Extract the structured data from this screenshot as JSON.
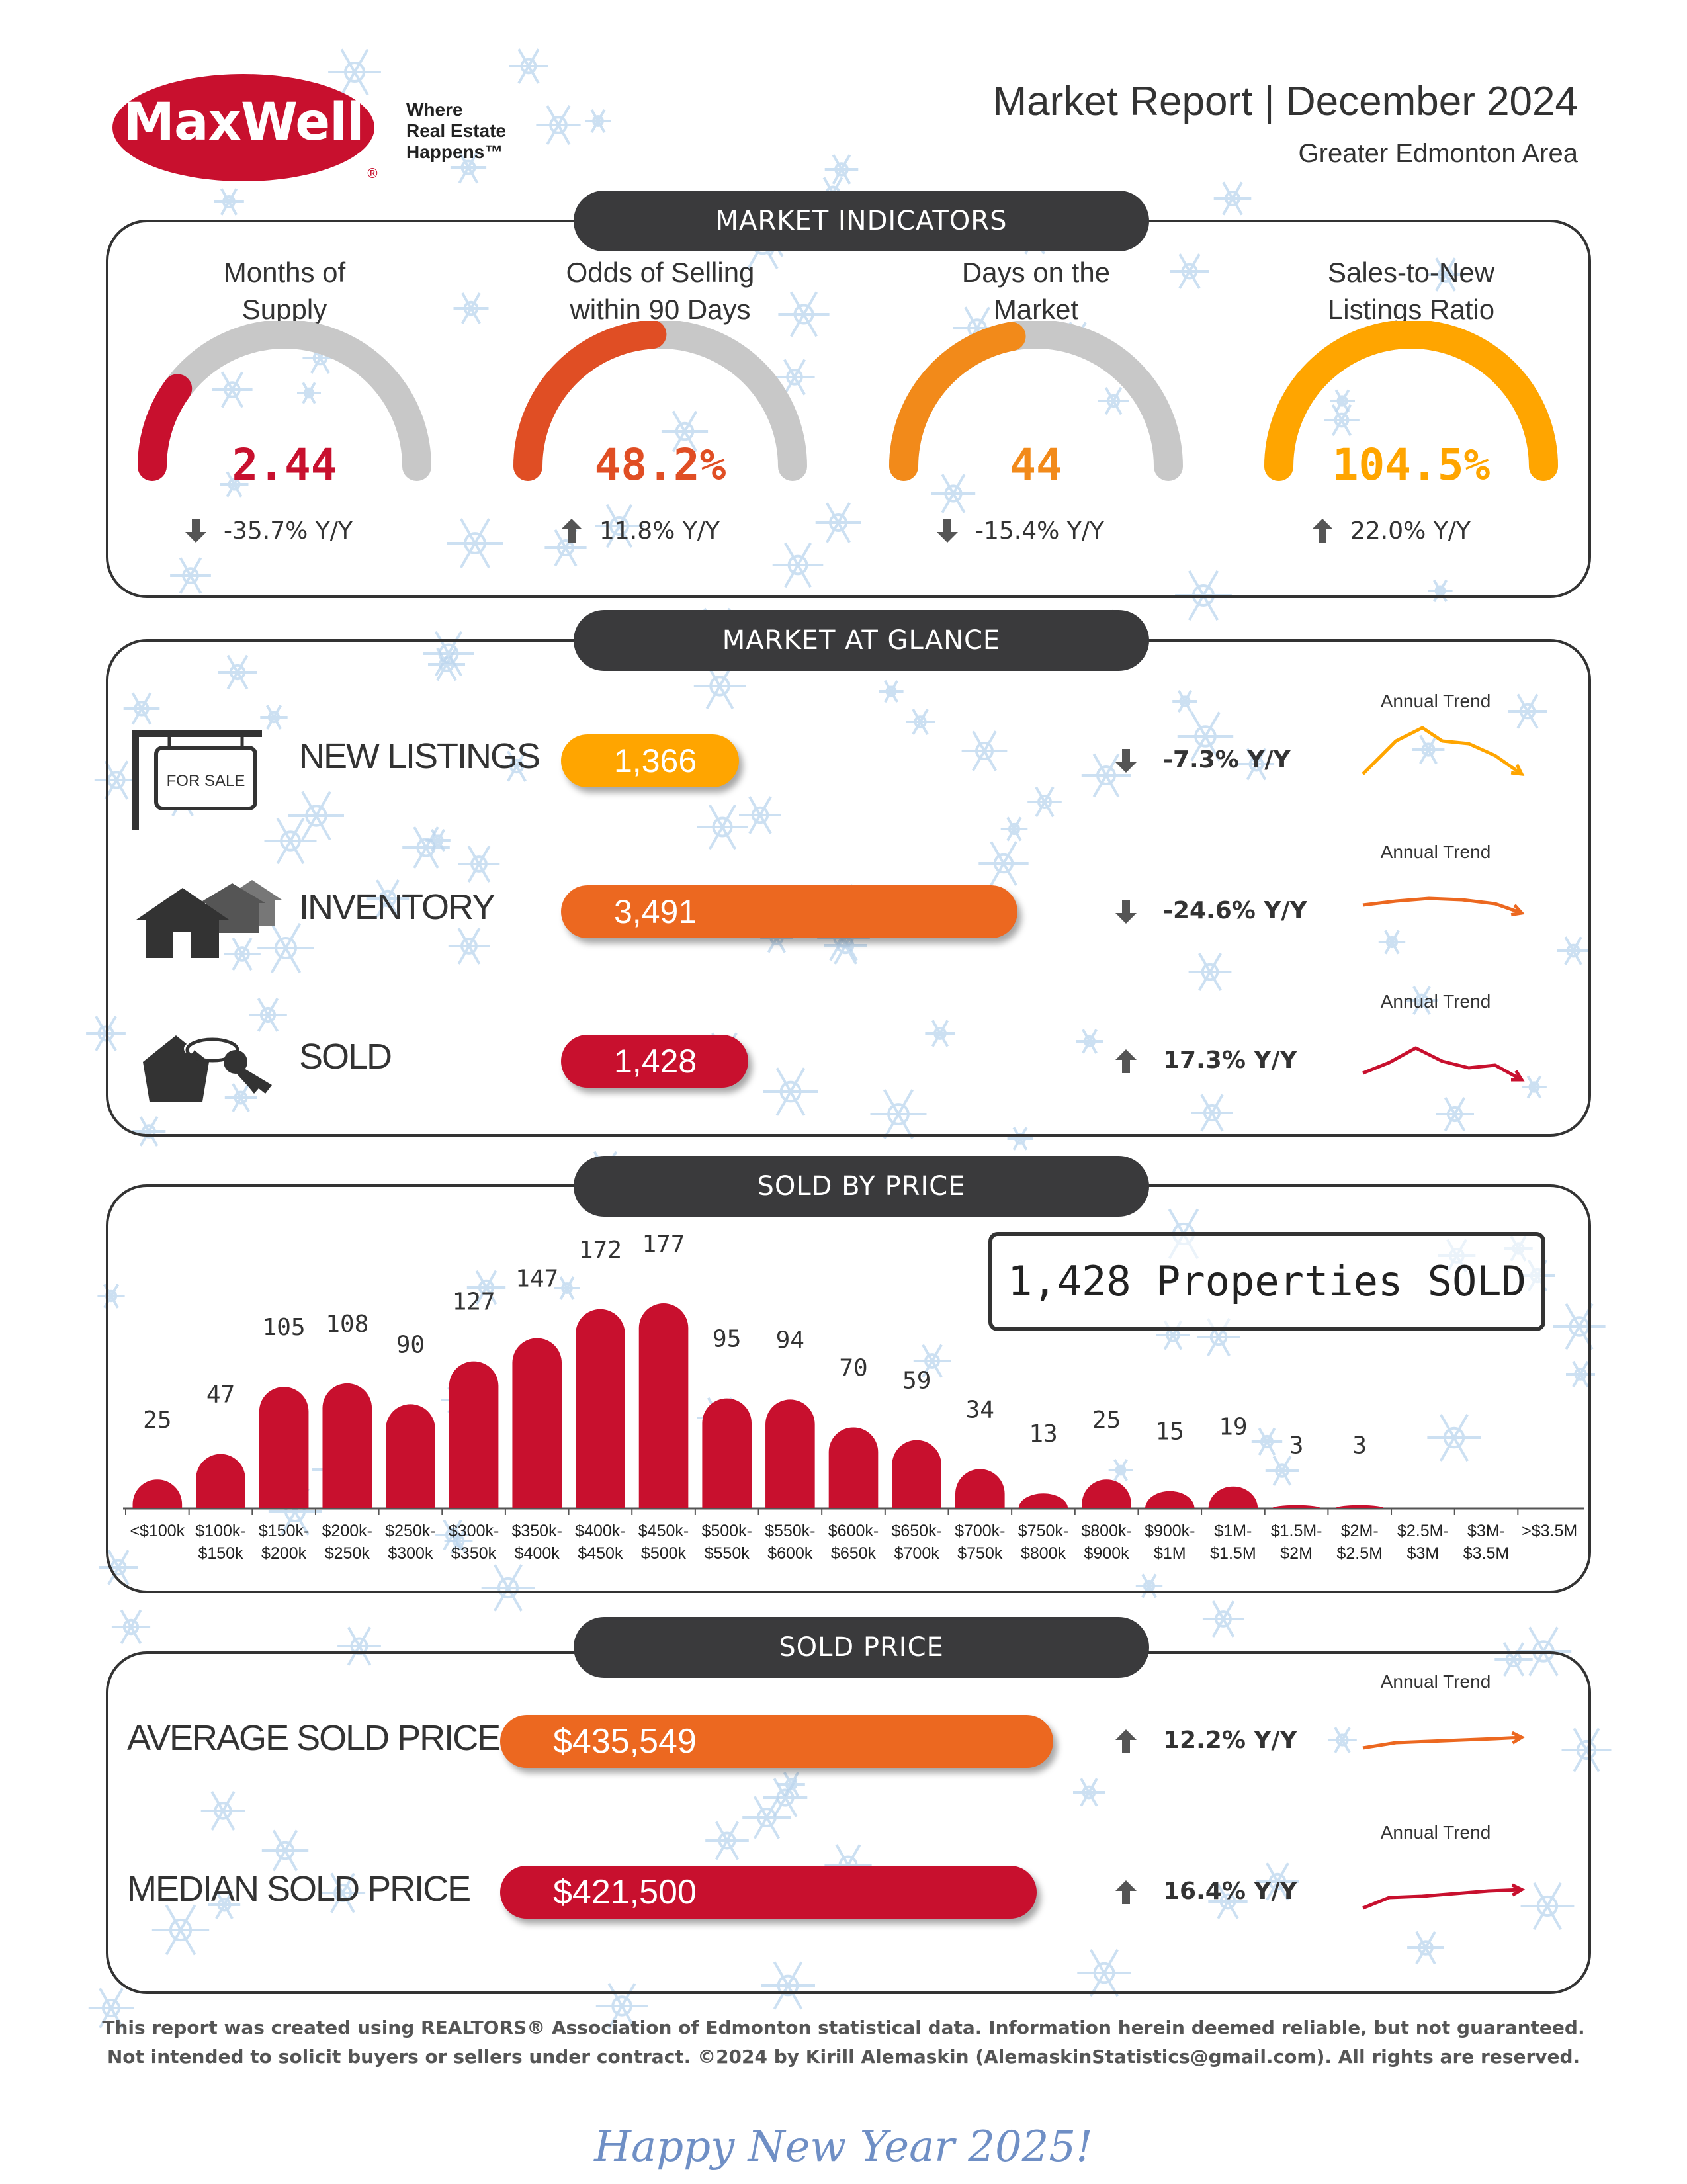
{
  "header": {
    "logo": "MaxWell",
    "tagline": [
      "Where",
      "Real Estate",
      "Happens™"
    ],
    "title": "Market Report | December 2024",
    "subtitle": "Greater Edmonton Area"
  },
  "indicators": {
    "heading": "MARKET INDICATORS",
    "items": [
      {
        "label_line1": "Months of",
        "label_line2": "Supply",
        "value": "2.44",
        "change": "-35.7% Y/Y",
        "direction": "down",
        "color": "#c8102e",
        "fill": 0.2
      },
      {
        "label_line1": "Odds of Selling",
        "label_line2": "within 90 Days",
        "value": "48.2%",
        "change": "11.8% Y/Y",
        "direction": "up",
        "color": "#e04e24",
        "fill": 0.48
      },
      {
        "label_line1": "Days on the",
        "label_line2": "Market",
        "value": "44",
        "change": "-15.4% Y/Y",
        "direction": "down",
        "color": "#f28a1a",
        "fill": 0.44
      },
      {
        "label_line1": "Sales-to-New",
        "label_line2": "Listings Ratio",
        "value": "104.5%",
        "change": "22.0% Y/Y",
        "direction": "up",
        "color": "#ffa500",
        "fill": 1.0
      }
    ]
  },
  "glance": {
    "heading": "MARKET AT GLANCE",
    "trend_label": "Annual Trend",
    "sign_text": "FOR SALE",
    "rows": [
      {
        "label": "NEW LISTINGS",
        "value": "1,366",
        "change": "-7.3% Y/Y",
        "direction": "down",
        "color": "#ffa500",
        "share": 0.39
      },
      {
        "label": "INVENTORY",
        "value": "3,491",
        "change": "-24.6% Y/Y",
        "direction": "down",
        "color": "#ec6820",
        "share": 1.0
      },
      {
        "label": "SOLD",
        "value": "1,428",
        "change": "17.3% Y/Y",
        "direction": "up",
        "color": "#c8102e",
        "share": 0.41
      }
    ]
  },
  "sold_by_price": {
    "heading": "SOLD BY PRICE",
    "total": "1,428 Properties SOLD"
  },
  "chart_data": {
    "type": "bar",
    "categories": [
      [
        "<$100k",
        ""
      ],
      [
        "$100k-",
        "$150k"
      ],
      [
        "$150k-",
        "$200k"
      ],
      [
        "$200k-",
        "$250k"
      ],
      [
        "$250k-",
        "$300k"
      ],
      [
        "$300k-",
        "$350k"
      ],
      [
        "$350k-",
        "$400k"
      ],
      [
        "$400k-",
        "$450k"
      ],
      [
        "$450k-",
        "$500k"
      ],
      [
        "$500k-",
        "$550k"
      ],
      [
        "$550k-",
        "$600k"
      ],
      [
        "$600k-",
        "$650k"
      ],
      [
        "$650k-",
        "$700k"
      ],
      [
        "$700k-",
        "$750k"
      ],
      [
        "$750k-",
        "$800k"
      ],
      [
        "$800k-",
        "$900k"
      ],
      [
        "$900k-",
        "$1M"
      ],
      [
        "$1M-",
        "$1.5M"
      ],
      [
        "$1.5M-",
        "$2M"
      ],
      [
        "$2M-",
        "$2.5M"
      ],
      [
        "$2.5M-",
        "$3M"
      ],
      [
        "$3M-",
        "$3.5M"
      ],
      [
        ">$3.5M",
        ""
      ]
    ],
    "values": [
      25,
      47,
      105,
      108,
      90,
      127,
      147,
      172,
      177,
      95,
      94,
      70,
      59,
      34,
      13,
      25,
      15,
      19,
      3,
      3,
      0,
      0,
      0
    ],
    "data_labels": [
      "25",
      "47",
      "105",
      "108",
      "90",
      "127",
      "147",
      "172",
      "177",
      "95",
      "94",
      "70",
      "59",
      "34",
      "13",
      "25",
      "15",
      "19",
      "3",
      "3",
      "",
      "",
      ""
    ],
    "ylim": [
      0,
      177
    ],
    "color": "#c8102e"
  },
  "sold_price": {
    "heading": "SOLD PRICE",
    "trend_label": "Annual Trend",
    "rows": [
      {
        "label": "AVERAGE SOLD PRICE",
        "value": "$435,549",
        "change": "12.2% Y/Y",
        "direction": "up",
        "color": "#ec6820",
        "share": 1.0
      },
      {
        "label": "MEDIAN SOLD PRICE",
        "value": "$421,500",
        "change": "16.4% Y/Y",
        "direction": "up",
        "color": "#c8102e",
        "share": 0.97
      }
    ]
  },
  "footer": {
    "line1": "This report was created using REALTORS® Association of Edmonton statistical data. Information herein deemed reliable, but not guaranteed.",
    "line2": "Not intended to solicit buyers or sellers under contract. ©2024 by Kirill Alemaskin (AlemaskinStatistics@gmail.com). All rights are reserved.",
    "greeting": "Happy New Year 2025!"
  },
  "icons": {
    "up": "arrow-up-icon",
    "down": "arrow-down-icon"
  }
}
